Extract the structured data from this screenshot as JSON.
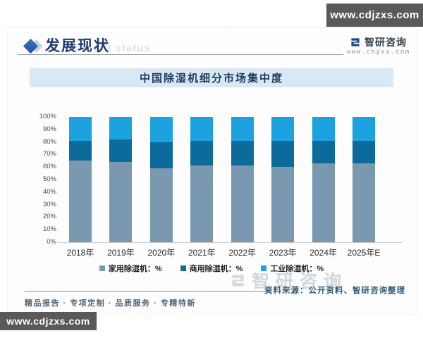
{
  "page": {
    "top_site_badge": "www.cdjzxs.com",
    "bottom_site_badge": "www.cdjzxs.com"
  },
  "header": {
    "title": "发展现状",
    "subtitle_watermark": "ent status",
    "brand": {
      "name": "智研咨询",
      "url": "www.chyxx.com",
      "icon": "zhiyan-logo-icon",
      "color": "#1b4a7e"
    }
  },
  "chart_data": {
    "type": "bar",
    "stacked": true,
    "title": "中国除湿机细分市场集中度",
    "categories": [
      "2018年",
      "2019年",
      "2020年",
      "2021年",
      "2022年",
      "2023年",
      "2024年",
      "2025年E"
    ],
    "series": [
      {
        "name": "家用除湿机：%",
        "color": "#7a99b0",
        "values": [
          65,
          64,
          59,
          61,
          61,
          60,
          63,
          63
        ]
      },
      {
        "name": "商用除湿机：%",
        "color": "#0c6b9b",
        "values": [
          16,
          18,
          21,
          20,
          20,
          21,
          18,
          18
        ]
      },
      {
        "name": "工业除湿机：%",
        "color": "#1ca2de",
        "values": [
          19,
          18,
          20,
          19,
          19,
          19,
          19,
          19
        ]
      }
    ],
    "xlabel": "",
    "ylabel": "",
    "ylim": [
      0,
      100
    ],
    "y_tick_labels": [
      "0%",
      "10%",
      "20%",
      "30%",
      "40%",
      "50%",
      "60%",
      "70%",
      "80%",
      "90%",
      "100%"
    ],
    "grid": false,
    "legend_position": "bottom"
  },
  "footer": {
    "source": "资料来源：公开资料、智研咨询整理",
    "tagline": "精品报告 · 专项定制 · 品质服务 · 专精特新"
  },
  "watermark": {
    "text": "智研咨询"
  }
}
